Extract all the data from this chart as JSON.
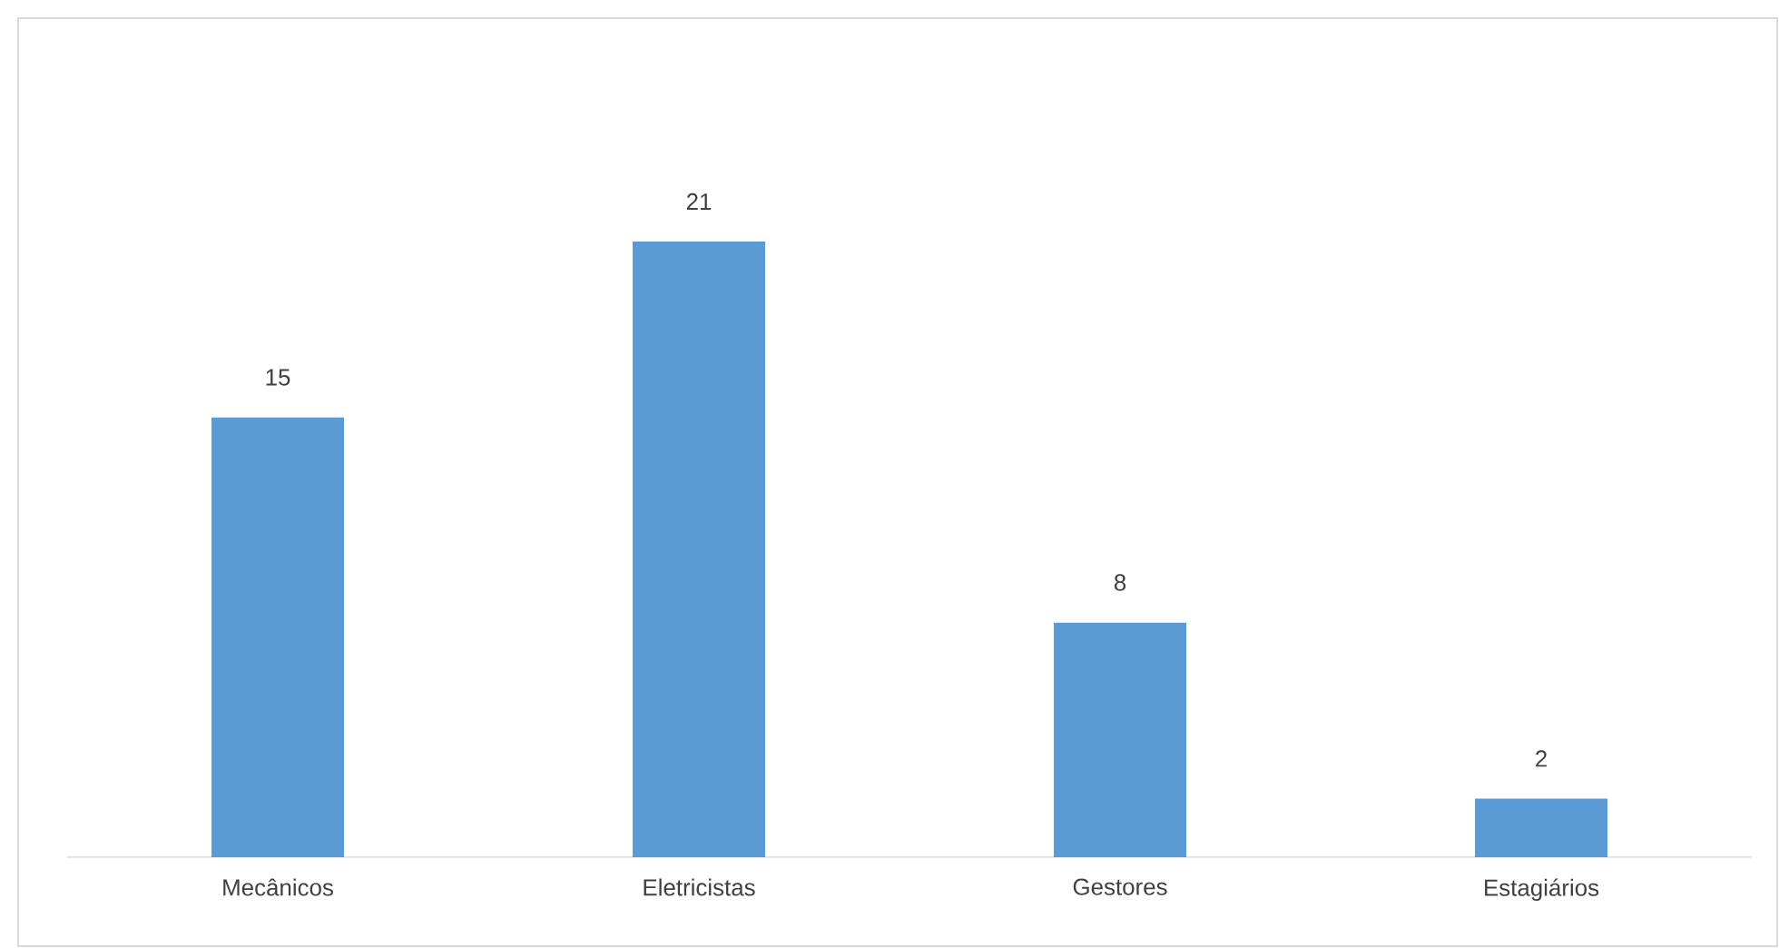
{
  "chart_data": {
    "type": "bar",
    "categories": [
      "Mecânicos",
      "Eletricistas",
      "Gestores",
      "Estagiários"
    ],
    "values": [
      15,
      21,
      8,
      2
    ],
    "color": "#5b9bd5",
    "data_labels": true
  }
}
